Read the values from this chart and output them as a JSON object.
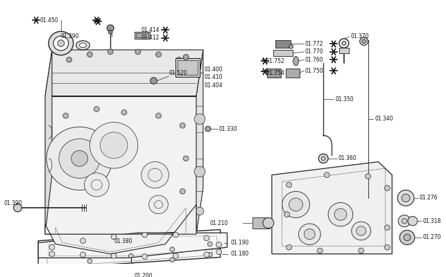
{
  "bg_color": "#ffffff",
  "figsize": [
    6.43,
    4.0
  ],
  "dpi": 100,
  "font_size": 5.5,
  "line_color": "#222222",
  "line_width": 0.7
}
